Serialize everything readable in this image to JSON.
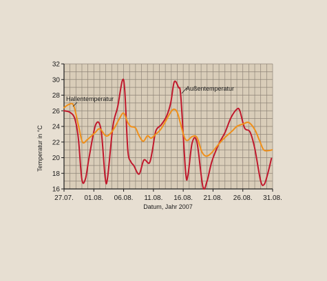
{
  "chart_data": {
    "type": "line",
    "xlabel": "Datum, Jahr 2007",
    "ylabel": "Temperatur in °C",
    "ylim": [
      16,
      32
    ],
    "yticks": [
      16,
      18,
      20,
      22,
      24,
      26,
      28,
      30,
      32
    ],
    "xlim": [
      0,
      35
    ],
    "xticks": [
      {
        "x": 0,
        "label": "27.07."
      },
      {
        "x": 5,
        "label": "01.08."
      },
      {
        "x": 10,
        "label": "06.08."
      },
      {
        "x": 15,
        "label": "11.08."
      },
      {
        "x": 20,
        "label": "16.08."
      },
      {
        "x": 25,
        "label": "21.08."
      },
      {
        "x": 30,
        "label": "26.08."
      },
      {
        "x": 35,
        "label": "31.08."
      }
    ],
    "grid": true,
    "colors": {
      "background": "#e7dfd2",
      "plot_background": "#d9cdb9",
      "grid": "#8f8578",
      "axis": "#1a1a1a",
      "outdoor": "#c0182c",
      "hall": "#f0901a"
    },
    "series": [
      {
        "name": "Außentemperatur",
        "label": "Außentemperatur",
        "color": "#c0182c",
        "points": [
          [
            0,
            26.0
          ],
          [
            1,
            25.8
          ],
          [
            1.8,
            25.0
          ],
          [
            2.4,
            22.5
          ],
          [
            3.0,
            17.2
          ],
          [
            3.6,
            17.3
          ],
          [
            4.2,
            20.0
          ],
          [
            5.3,
            24.2
          ],
          [
            6.2,
            23.6
          ],
          [
            6.9,
            17.5
          ],
          [
            7.3,
            17.4
          ],
          [
            8.2,
            24.0
          ],
          [
            9.0,
            26.5
          ],
          [
            9.8,
            29.9
          ],
          [
            10.2,
            28.5
          ],
          [
            10.7,
            21.0
          ],
          [
            11.2,
            19.5
          ],
          [
            11.7,
            19.0
          ],
          [
            12.6,
            17.9
          ],
          [
            13.4,
            19.7
          ],
          [
            14.3,
            19.3
          ],
          [
            14.8,
            20.8
          ],
          [
            15.4,
            23.4
          ],
          [
            16.3,
            24.2
          ],
          [
            17.2,
            25.3
          ],
          [
            17.9,
            27.0
          ],
          [
            18.5,
            29.7
          ],
          [
            19.2,
            29.0
          ],
          [
            19.6,
            27.8
          ],
          [
            20.4,
            18.2
          ],
          [
            20.8,
            17.8
          ],
          [
            21.5,
            21.9
          ],
          [
            22.3,
            22.0
          ],
          [
            23.3,
            16.3
          ],
          [
            24.0,
            17.0
          ],
          [
            24.8,
            19.5
          ],
          [
            26.0,
            21.8
          ],
          [
            27.0,
            23.2
          ],
          [
            28.0,
            25.1
          ],
          [
            29.0,
            26.2
          ],
          [
            29.5,
            26.0
          ],
          [
            30.3,
            23.8
          ],
          [
            31.2,
            23.3
          ],
          [
            32.0,
            21.2
          ],
          [
            33.0,
            17.0
          ],
          [
            33.6,
            16.6
          ],
          [
            34.2,
            18.0
          ],
          [
            34.8,
            19.9
          ]
        ]
      },
      {
        "name": "Hallentemperatur",
        "label": "Hallentemperatur",
        "color": "#f0901a",
        "points": [
          [
            0,
            26.4
          ],
          [
            0.8,
            26.8
          ],
          [
            1.6,
            26.7
          ],
          [
            2.4,
            24.2
          ],
          [
            3.1,
            22.0
          ],
          [
            3.9,
            22.3
          ],
          [
            5.2,
            23.2
          ],
          [
            6.0,
            23.7
          ],
          [
            7.0,
            22.8
          ],
          [
            7.8,
            23.1
          ],
          [
            8.6,
            24.0
          ],
          [
            9.3,
            25.0
          ],
          [
            10.0,
            25.7
          ],
          [
            10.7,
            24.5
          ],
          [
            11.2,
            24.0
          ],
          [
            12.0,
            23.8
          ],
          [
            12.6,
            22.8
          ],
          [
            13.3,
            22.1
          ],
          [
            14.0,
            22.8
          ],
          [
            14.6,
            22.5
          ],
          [
            15.4,
            23.0
          ],
          [
            16.2,
            23.6
          ],
          [
            17.0,
            24.6
          ],
          [
            17.8,
            25.7
          ],
          [
            18.4,
            26.2
          ],
          [
            19.0,
            25.8
          ],
          [
            19.6,
            24.2
          ],
          [
            20.2,
            22.6
          ],
          [
            20.7,
            22.2
          ],
          [
            21.5,
            22.7
          ],
          [
            22.3,
            22.6
          ],
          [
            23.1,
            20.8
          ],
          [
            23.8,
            20.2
          ],
          [
            24.6,
            20.5
          ],
          [
            25.6,
            21.4
          ],
          [
            26.5,
            22.2
          ],
          [
            27.3,
            22.8
          ],
          [
            28.2,
            23.4
          ],
          [
            29.0,
            24.0
          ],
          [
            30.0,
            24.3
          ],
          [
            31.0,
            24.5
          ],
          [
            32.0,
            23.6
          ],
          [
            32.8,
            22.2
          ],
          [
            33.5,
            21.0
          ],
          [
            34.3,
            20.9
          ],
          [
            34.9,
            21.0
          ]
        ]
      }
    ]
  }
}
